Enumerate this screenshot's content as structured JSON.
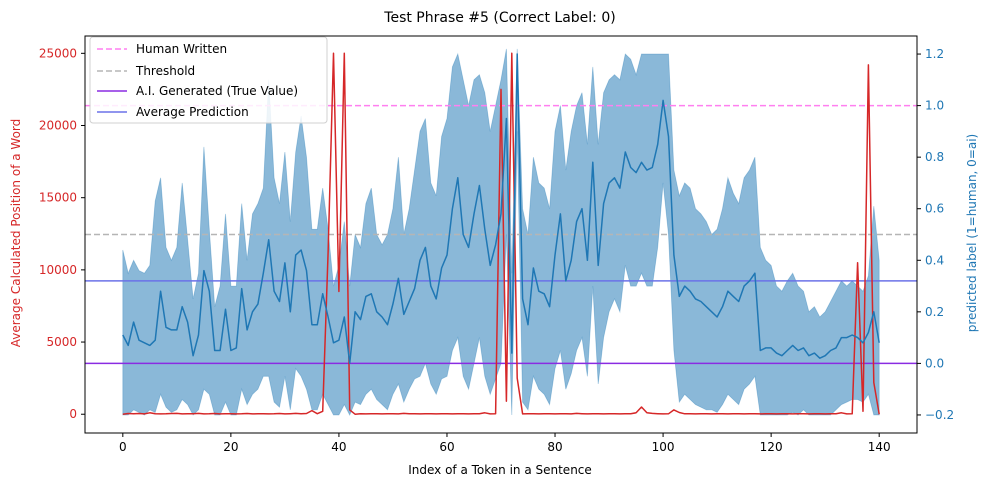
{
  "chart_data": {
    "type": "line",
    "title": "Test Phrase #5 (Correct Label: 0)",
    "xlabel": "Index of a Token in a Sentence",
    "ylabel_left": "Average Calculated Position of a Word",
    "ylabel_right": "predicted label (1=human, 0=ai)",
    "xlim": [
      -7,
      147
    ],
    "ylim_left": [
      -1300,
      26200
    ],
    "ylim_right": [
      -0.27,
      1.27
    ],
    "x_ticks": [
      0,
      20,
      40,
      60,
      80,
      100,
      120,
      140
    ],
    "y_ticks_left": [
      0,
      5000,
      10000,
      15000,
      20000,
      25000
    ],
    "y_ticks_right": [
      -0.2,
      0.0,
      0.2,
      0.4,
      0.6,
      0.8,
      1.0,
      1.2
    ],
    "legend": {
      "placement": "top-left",
      "items": [
        {
          "label": "Human Written",
          "color": "#ff7ff0",
          "style": "dashed"
        },
        {
          "label": "Threshold",
          "color": "#b5b5b5",
          "style": "dashed"
        },
        {
          "label": "A.I. Generated (True Value)",
          "color": "#8a2be2",
          "style": "solid"
        },
        {
          "label": "Average Prediction",
          "color": "#6b72e8",
          "style": "solid"
        }
      ]
    },
    "reference_lines": {
      "human_written": 1.0,
      "threshold": 0.5,
      "ai_generated_true_value": 0.0,
      "average_prediction": 0.32
    },
    "colors": {
      "word_position": "#d62728",
      "prediction": "#1f77b4",
      "band": "#1f77b4",
      "left_axis": "#d62728",
      "right_axis": "#1f77b4"
    },
    "series": [
      {
        "name": "Average Calculated Position of a Word",
        "axis": "left",
        "x": [
          0,
          1,
          2,
          3,
          4,
          5,
          6,
          7,
          8,
          9,
          10,
          11,
          12,
          13,
          14,
          15,
          16,
          17,
          18,
          19,
          20,
          21,
          22,
          23,
          24,
          25,
          26,
          27,
          28,
          29,
          30,
          31,
          32,
          33,
          34,
          35,
          36,
          37,
          38,
          39,
          40,
          41,
          42,
          43,
          44,
          45,
          46,
          47,
          48,
          49,
          50,
          51,
          52,
          53,
          54,
          55,
          56,
          57,
          58,
          59,
          60,
          61,
          62,
          63,
          64,
          65,
          66,
          67,
          68,
          69,
          70,
          71,
          72,
          73,
          74,
          75,
          76,
          77,
          78,
          79,
          80,
          81,
          82,
          83,
          84,
          85,
          86,
          87,
          88,
          89,
          90,
          91,
          92,
          93,
          94,
          95,
          96,
          97,
          98,
          99,
          100,
          101,
          102,
          103,
          104,
          105,
          106,
          107,
          108,
          109,
          110,
          111,
          112,
          113,
          114,
          115,
          116,
          117,
          118,
          119,
          120,
          121,
          122,
          123,
          124,
          125,
          126,
          127,
          128,
          129,
          130,
          131,
          132,
          133,
          134,
          135,
          136,
          137,
          138,
          139,
          140
        ],
        "values": [
          0,
          50,
          30,
          50,
          20,
          100,
          40,
          20,
          30,
          50,
          60,
          20,
          40,
          30,
          60,
          20,
          30,
          50,
          20,
          30,
          40,
          20,
          30,
          50,
          20,
          30,
          40,
          20,
          30,
          50,
          20,
          40,
          60,
          30,
          50,
          250,
          40,
          200,
          11200,
          25000,
          8500,
          25000,
          300,
          0,
          30,
          20,
          30,
          40,
          20,
          30,
          40,
          20,
          60,
          30,
          40,
          20,
          30,
          40,
          20,
          30,
          40,
          20,
          30,
          40,
          20,
          30,
          40,
          100,
          20,
          30,
          22500,
          900,
          25000,
          2500,
          20,
          40,
          30,
          20,
          30,
          40,
          20,
          30,
          40,
          20,
          60,
          40,
          20,
          30,
          40,
          20,
          30,
          40,
          20,
          30,
          40,
          100,
          500,
          100,
          60,
          40,
          20,
          30,
          300,
          120,
          30,
          40,
          20,
          30,
          40,
          20,
          30,
          40,
          20,
          30,
          40,
          20,
          30,
          40,
          20,
          30,
          40,
          20,
          30,
          40,
          20,
          30,
          40,
          20,
          30,
          40,
          20,
          30,
          40,
          100,
          20,
          30,
          10500,
          200,
          24200,
          2200,
          0
        ]
      },
      {
        "name": "Average Prediction (per token)",
        "axis": "right",
        "x": [
          0,
          1,
          2,
          3,
          4,
          5,
          6,
          7,
          8,
          9,
          10,
          11,
          12,
          13,
          14,
          15,
          16,
          17,
          18,
          19,
          20,
          21,
          22,
          23,
          24,
          25,
          26,
          27,
          28,
          29,
          30,
          31,
          32,
          33,
          34,
          35,
          36,
          37,
          38,
          39,
          40,
          41,
          42,
          43,
          44,
          45,
          46,
          47,
          48,
          49,
          50,
          51,
          52,
          53,
          54,
          55,
          56,
          57,
          58,
          59,
          60,
          61,
          62,
          63,
          64,
          65,
          66,
          67,
          68,
          69,
          70,
          71,
          72,
          73,
          74,
          75,
          76,
          77,
          78,
          79,
          80,
          81,
          82,
          83,
          84,
          85,
          86,
          87,
          88,
          89,
          90,
          91,
          92,
          93,
          94,
          95,
          96,
          97,
          98,
          99,
          100,
          101,
          102,
          103,
          104,
          105,
          106,
          107,
          108,
          109,
          110,
          111,
          112,
          113,
          114,
          115,
          116,
          117,
          118,
          119,
          120,
          121,
          122,
          123,
          124,
          125,
          126,
          127,
          128,
          129,
          130,
          131,
          132,
          133,
          134,
          135,
          136,
          137,
          138,
          139,
          140
        ],
        "values": [
          0.11,
          0.07,
          0.16,
          0.09,
          0.08,
          0.07,
          0.09,
          0.28,
          0.14,
          0.13,
          0.13,
          0.22,
          0.16,
          0.03,
          0.11,
          0.36,
          0.28,
          0.05,
          0.05,
          0.21,
          0.05,
          0.06,
          0.29,
          0.13,
          0.2,
          0.23,
          0.35,
          0.48,
          0.28,
          0.24,
          0.39,
          0.2,
          0.42,
          0.44,
          0.36,
          0.15,
          0.15,
          0.27,
          0.18,
          0.08,
          0.09,
          0.18,
          0.0,
          0.2,
          0.17,
          0.26,
          0.27,
          0.2,
          0.18,
          0.15,
          0.23,
          0.33,
          0.19,
          0.24,
          0.29,
          0.4,
          0.45,
          0.3,
          0.25,
          0.37,
          0.42,
          0.6,
          0.72,
          0.5,
          0.45,
          0.58,
          0.69,
          0.52,
          0.38,
          0.46,
          0.58,
          0.95,
          0.04,
          1.2,
          0.25,
          0.15,
          0.37,
          0.28,
          0.27,
          0.22,
          0.42,
          0.58,
          0.32,
          0.4,
          0.55,
          0.6,
          0.4,
          0.78,
          0.38,
          0.62,
          0.7,
          0.72,
          0.68,
          0.82,
          0.76,
          0.74,
          0.78,
          0.75,
          0.76,
          0.85,
          1.02,
          0.88,
          0.42,
          0.26,
          0.3,
          0.28,
          0.25,
          0.24,
          0.22,
          0.2,
          0.18,
          0.22,
          0.28,
          0.26,
          0.24,
          0.3,
          0.32,
          0.35,
          0.05,
          0.06,
          0.06,
          0.04,
          0.03,
          0.05,
          0.07,
          0.05,
          0.06,
          0.03,
          0.04,
          0.02,
          0.03,
          0.05,
          0.06,
          0.1,
          0.1,
          0.11,
          0.1,
          0.08,
          0.12,
          0.2,
          0.08
        ]
      },
      {
        "name": "Prediction band upper",
        "axis": "right",
        "x": [
          0,
          1,
          2,
          3,
          4,
          5,
          6,
          7,
          8,
          9,
          10,
          11,
          12,
          13,
          14,
          15,
          16,
          17,
          18,
          19,
          20,
          21,
          22,
          23,
          24,
          25,
          26,
          27,
          28,
          29,
          30,
          31,
          32,
          33,
          34,
          35,
          36,
          37,
          38,
          39,
          40,
          41,
          42,
          43,
          44,
          45,
          46,
          47,
          48,
          49,
          50,
          51,
          52,
          53,
          54,
          55,
          56,
          57,
          58,
          59,
          60,
          61,
          62,
          63,
          64,
          65,
          66,
          67,
          68,
          69,
          70,
          71,
          72,
          73,
          74,
          75,
          76,
          77,
          78,
          79,
          80,
          81,
          82,
          83,
          84,
          85,
          86,
          87,
          88,
          89,
          90,
          91,
          92,
          93,
          94,
          95,
          96,
          97,
          98,
          99,
          100,
          101,
          102,
          103,
          104,
          105,
          106,
          107,
          108,
          109,
          110,
          111,
          112,
          113,
          114,
          115,
          116,
          117,
          118,
          119,
          120,
          121,
          122,
          123,
          124,
          125,
          126,
          127,
          128,
          129,
          130,
          131,
          132,
          133,
          134,
          135,
          136,
          137,
          138,
          139,
          140
        ],
        "values": [
          0.44,
          0.35,
          0.4,
          0.36,
          0.35,
          0.38,
          0.63,
          0.72,
          0.45,
          0.4,
          0.45,
          0.7,
          0.48,
          0.25,
          0.35,
          0.84,
          0.52,
          0.22,
          0.3,
          0.58,
          0.3,
          0.3,
          0.62,
          0.4,
          0.58,
          0.62,
          0.68,
          1.1,
          0.72,
          0.62,
          0.82,
          0.55,
          0.82,
          0.96,
          0.8,
          0.52,
          0.52,
          0.68,
          0.52,
          0.3,
          0.38,
          0.55,
          0.3,
          0.5,
          0.45,
          0.62,
          0.68,
          0.5,
          0.46,
          0.5,
          0.6,
          0.8,
          0.5,
          0.6,
          0.75,
          0.9,
          0.95,
          0.7,
          0.65,
          0.88,
          0.95,
          1.15,
          1.2,
          1.1,
          1.0,
          1.1,
          1.12,
          1.05,
          0.9,
          1.0,
          1.1,
          1.22,
          0.35,
          1.22,
          0.6,
          0.5,
          0.8,
          0.7,
          0.68,
          0.6,
          0.9,
          1.0,
          0.75,
          0.9,
          1.0,
          1.05,
          0.85,
          1.15,
          0.85,
          1.05,
          1.1,
          1.12,
          1.1,
          1.2,
          1.18,
          1.12,
          1.2,
          1.2,
          1.2,
          1.2,
          1.2,
          1.2,
          0.75,
          0.65,
          0.7,
          0.68,
          0.6,
          0.58,
          0.55,
          0.5,
          0.52,
          0.6,
          0.72,
          0.66,
          0.62,
          0.72,
          0.75,
          0.8,
          0.45,
          0.4,
          0.38,
          0.3,
          0.28,
          0.32,
          0.35,
          0.3,
          0.28,
          0.2,
          0.22,
          0.18,
          0.2,
          0.24,
          0.28,
          0.32,
          0.3,
          0.32,
          0.3,
          0.28,
          0.34,
          0.61,
          0.4
        ]
      },
      {
        "name": "Prediction band lower",
        "axis": "right",
        "x": [
          0,
          1,
          2,
          3,
          4,
          5,
          6,
          7,
          8,
          9,
          10,
          11,
          12,
          13,
          14,
          15,
          16,
          17,
          18,
          19,
          20,
          21,
          22,
          23,
          24,
          25,
          26,
          27,
          28,
          29,
          30,
          31,
          32,
          33,
          34,
          35,
          36,
          37,
          38,
          39,
          40,
          41,
          42,
          43,
          44,
          45,
          46,
          47,
          48,
          49,
          50,
          51,
          52,
          53,
          54,
          55,
          56,
          57,
          58,
          59,
          60,
          61,
          62,
          63,
          64,
          65,
          66,
          67,
          68,
          69,
          70,
          71,
          72,
          73,
          74,
          75,
          76,
          77,
          78,
          79,
          80,
          81,
          82,
          83,
          84,
          85,
          86,
          87,
          88,
          89,
          90,
          91,
          92,
          93,
          94,
          95,
          96,
          97,
          98,
          99,
          100,
          101,
          102,
          103,
          104,
          105,
          106,
          107,
          108,
          109,
          110,
          111,
          112,
          113,
          114,
          115,
          116,
          117,
          118,
          119,
          120,
          121,
          122,
          123,
          124,
          125,
          126,
          127,
          128,
          129,
          130,
          131,
          132,
          133,
          134,
          135,
          136,
          137,
          138,
          139,
          140
        ],
        "values": [
          -0.2,
          -0.2,
          -0.18,
          -0.19,
          -0.2,
          -0.18,
          -0.19,
          -0.12,
          -0.17,
          -0.19,
          -0.18,
          -0.14,
          -0.16,
          -0.2,
          -0.18,
          -0.1,
          -0.12,
          -0.2,
          -0.2,
          -0.15,
          -0.2,
          -0.2,
          -0.1,
          -0.16,
          -0.12,
          -0.1,
          -0.05,
          -0.05,
          -0.15,
          -0.17,
          -0.05,
          -0.18,
          -0.02,
          -0.05,
          -0.1,
          -0.18,
          -0.18,
          -0.12,
          -0.16,
          -0.2,
          -0.2,
          -0.16,
          -0.2,
          -0.15,
          -0.16,
          -0.12,
          -0.1,
          -0.14,
          -0.16,
          -0.18,
          -0.12,
          -0.08,
          -0.15,
          -0.1,
          -0.06,
          -0.05,
          0.0,
          -0.08,
          -0.12,
          -0.06,
          -0.05,
          0.05,
          0.1,
          -0.05,
          -0.1,
          0.0,
          0.1,
          -0.05,
          -0.12,
          -0.06,
          0.0,
          0.5,
          -0.2,
          0.9,
          -0.15,
          -0.18,
          -0.05,
          -0.1,
          -0.12,
          -0.16,
          -0.02,
          0.05,
          -0.1,
          -0.04,
          0.05,
          0.1,
          -0.05,
          0.3,
          -0.08,
          0.1,
          0.2,
          0.25,
          0.2,
          0.38,
          0.3,
          0.3,
          0.35,
          0.3,
          0.3,
          0.45,
          0.7,
          0.5,
          0.05,
          -0.15,
          -0.12,
          -0.14,
          -0.16,
          -0.17,
          -0.18,
          -0.18,
          -0.19,
          -0.16,
          -0.12,
          -0.14,
          -0.16,
          -0.1,
          -0.08,
          -0.05,
          -0.2,
          -0.2,
          -0.2,
          -0.2,
          -0.2,
          -0.2,
          -0.19,
          -0.2,
          -0.18,
          -0.2,
          -0.2,
          -0.2,
          -0.2,
          -0.2,
          -0.18,
          -0.16,
          -0.15,
          -0.14,
          -0.14,
          -0.15,
          -0.12,
          -0.2,
          -0.2
        ]
      }
    ]
  }
}
